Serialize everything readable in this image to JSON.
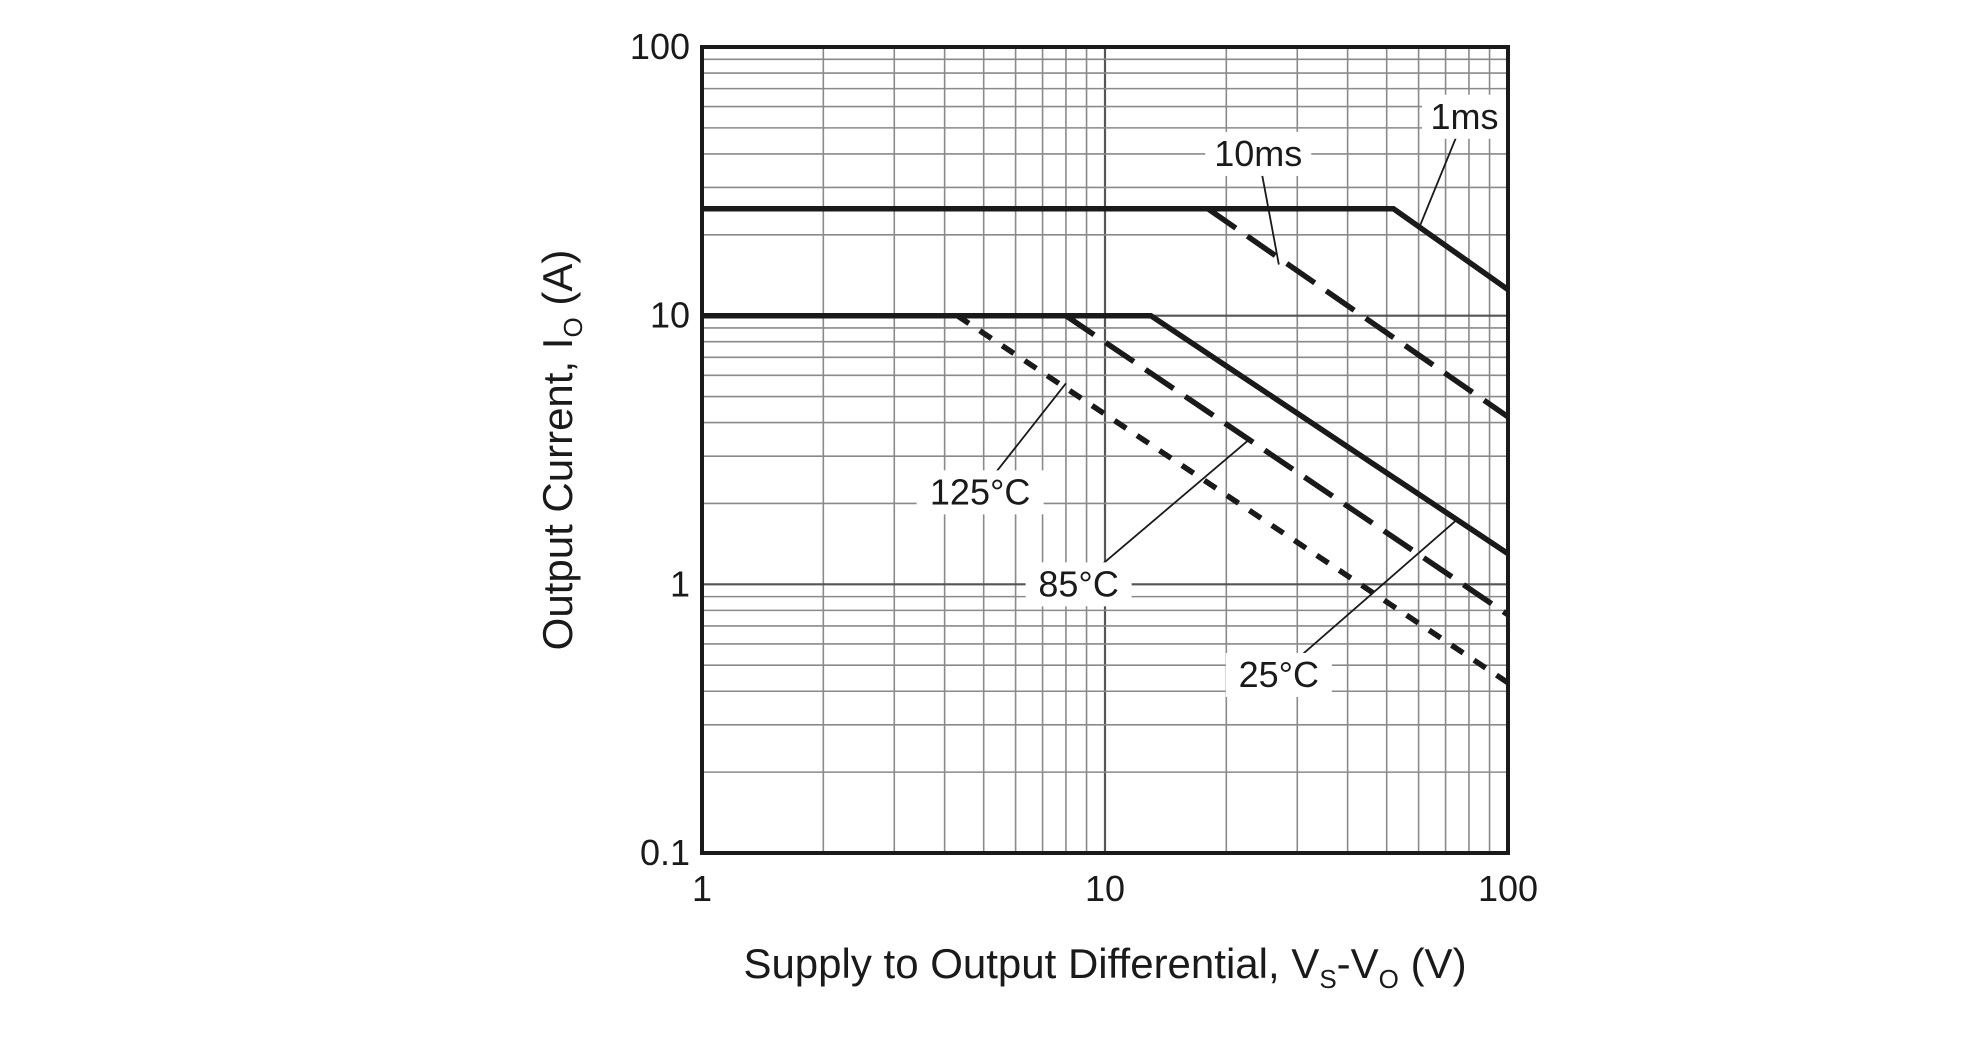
{
  "chart_data": {
    "type": "line",
    "title": "",
    "x_scale": "log",
    "y_scale": "log",
    "xlim": [
      1,
      100
    ],
    "ylim": [
      0.1,
      100
    ],
    "x_ticks": [
      "1",
      "10",
      "100"
    ],
    "y_ticks": [
      "0.1",
      "1",
      "10",
      "100"
    ],
    "xlabel": {
      "main": "Supply to Output Differential, V",
      "sub1": "S",
      "mid": "-V",
      "sub2": "O",
      "tail": " (V)"
    },
    "ylabel": {
      "main": "Output Current, I",
      "sub": "O",
      "tail": " (A)"
    },
    "grid": true,
    "series": [
      {
        "name": "1ms",
        "style": "solid",
        "x": [
          1,
          52,
          100
        ],
        "y": [
          25,
          25,
          12.5
        ]
      },
      {
        "name": "10ms",
        "style": "dashed",
        "x": [
          18,
          100
        ],
        "y": [
          25,
          4.2
        ]
      },
      {
        "name": "25°C",
        "style": "solid",
        "x": [
          1,
          13,
          100
        ],
        "y": [
          10,
          10,
          1.3
        ]
      },
      {
        "name": "85°C",
        "style": "dashed",
        "x": [
          8,
          100
        ],
        "y": [
          10,
          0.77
        ]
      },
      {
        "name": "125°C",
        "style": "dotted",
        "x": [
          4.3,
          100
        ],
        "y": [
          10,
          0.43
        ]
      }
    ],
    "annotations": [
      {
        "text": "1ms",
        "series": "1ms",
        "label_at": [
          78,
          55
        ],
        "point_at": [
          60,
          21
        ]
      },
      {
        "text": "10ms",
        "series": "10ms",
        "label_at": [
          24,
          40
        ],
        "point_at": [
          27,
          15.5
        ]
      },
      {
        "text": "125°C",
        "series": "125°C",
        "label_at": [
          4.9,
          2.2
        ],
        "point_at": [
          8,
          5.6
        ]
      },
      {
        "text": "85°C",
        "series": "85°C",
        "label_at": [
          8.6,
          1.0
        ],
        "point_at": [
          23,
          3.5
        ]
      },
      {
        "text": "25°C",
        "series": "25°C",
        "label_at": [
          27,
          0.46
        ],
        "point_at": [
          75,
          1.75
        ]
      }
    ]
  }
}
